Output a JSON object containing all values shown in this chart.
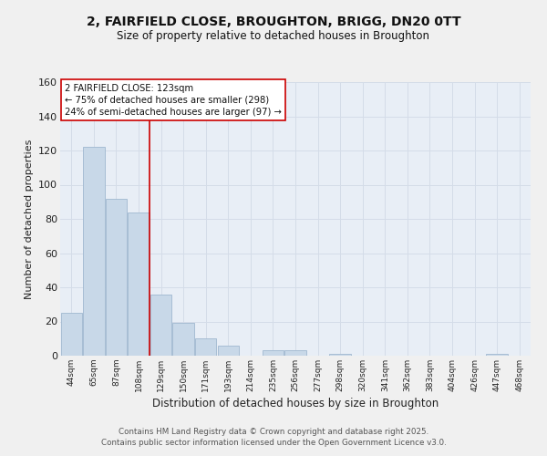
{
  "title_line1": "2, FAIRFIELD CLOSE, BROUGHTON, BRIGG, DN20 0TT",
  "title_line2": "Size of property relative to detached houses in Broughton",
  "xlabel": "Distribution of detached houses by size in Broughton",
  "ylabel": "Number of detached properties",
  "bin_labels": [
    "44sqm",
    "65sqm",
    "87sqm",
    "108sqm",
    "129sqm",
    "150sqm",
    "171sqm",
    "193sqm",
    "214sqm",
    "235sqm",
    "256sqm",
    "277sqm",
    "298sqm",
    "320sqm",
    "341sqm",
    "362sqm",
    "383sqm",
    "404sqm",
    "426sqm",
    "447sqm",
    "468sqm"
  ],
  "bar_values": [
    25,
    122,
    92,
    84,
    36,
    19,
    10,
    6,
    0,
    3,
    3,
    0,
    1,
    0,
    0,
    0,
    0,
    0,
    0,
    1,
    0
  ],
  "bar_color": "#c8d8e8",
  "bar_edge_color": "#a0b8d0",
  "annotation_box_text": "2 FAIRFIELD CLOSE: 123sqm\n← 75% of detached houses are smaller (298)\n24% of semi-detached houses are larger (97) →",
  "annotation_box_color": "#ffffff",
  "annotation_box_edge_color": "#cc0000",
  "vline_color": "#cc0000",
  "ylim": [
    0,
    160
  ],
  "yticks": [
    0,
    20,
    40,
    60,
    80,
    100,
    120,
    140,
    160
  ],
  "grid_color": "#d4dce8",
  "bg_color": "#e8eef6",
  "fig_bg_color": "#f0f0f0",
  "footer_line1": "Contains HM Land Registry data © Crown copyright and database right 2025.",
  "footer_line2": "Contains public sector information licensed under the Open Government Licence v3.0."
}
